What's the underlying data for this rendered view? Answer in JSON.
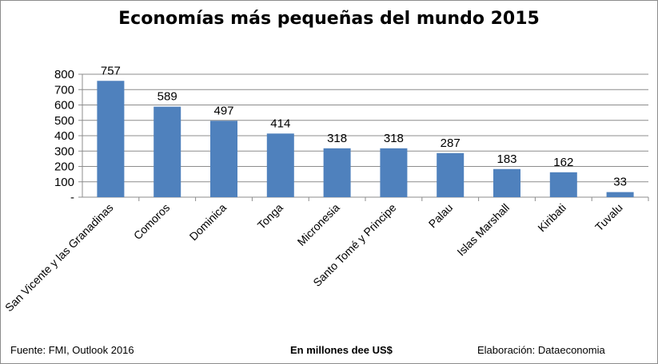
{
  "chart_data": {
    "type": "bar",
    "title": "Economías más pequeñas del mundo 2015",
    "categories": [
      "San Vicente y las Granadinas",
      "Comoros",
      "Dominica",
      "Tonga",
      "Micronesia",
      "Santo Tomé y Principe",
      "Palau",
      "Islas Marshall",
      "Kiribati",
      "Tuvalu"
    ],
    "values": [
      757,
      589,
      497,
      414,
      318,
      318,
      287,
      183,
      162,
      33
    ],
    "ylim": [
      0,
      800
    ],
    "yticks": [
      "-",
      "100",
      "200",
      "300",
      "400",
      "500",
      "600",
      "700",
      "800"
    ],
    "grid": true,
    "bar_color": "#4f81bd"
  },
  "footer": {
    "source": "Fuente: FMI, Outlook 2016",
    "units": "En millones dee US$",
    "credit": "Elaboración: Dataeconomia"
  }
}
